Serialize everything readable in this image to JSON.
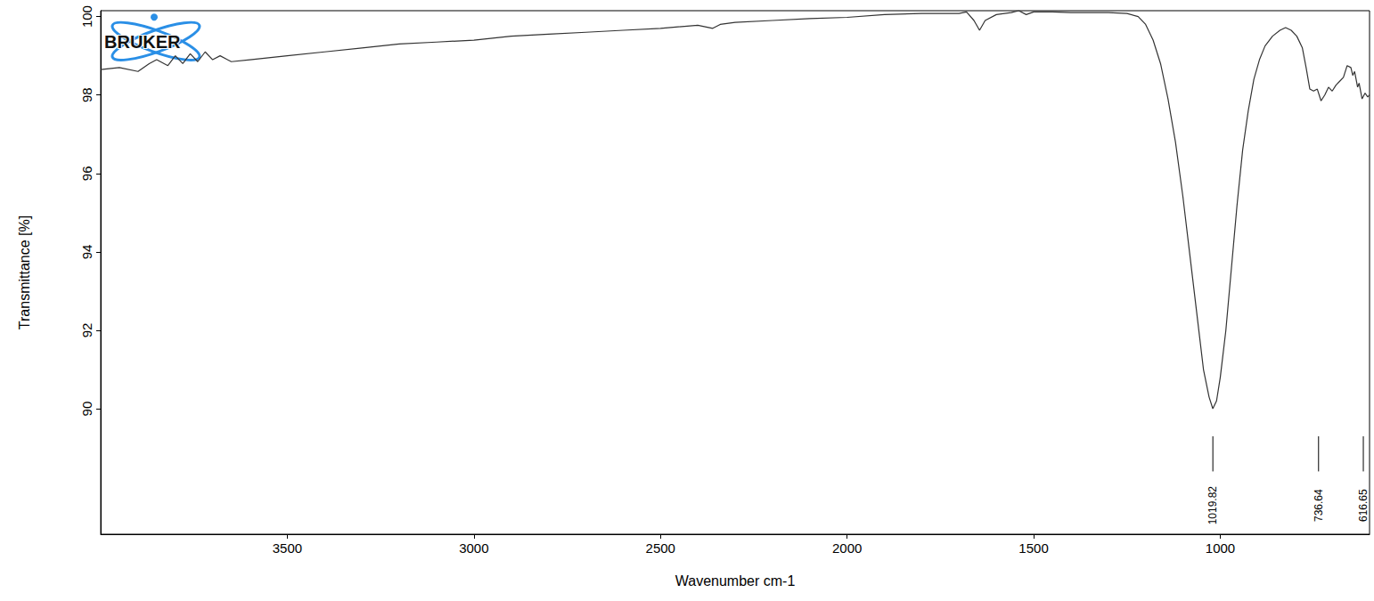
{
  "chart_data": {
    "type": "line",
    "logo": "BRUKER",
    "x_label": "Wavenumber cm-1",
    "y_label": "Transmittance [%]",
    "color": "#333333",
    "grid": false,
    "xlim": [
      4000,
      600
    ],
    "ylim": [
      86.8,
      100.15
    ],
    "xticks": [
      3500,
      3000,
      2500,
      2000,
      1500,
      1000
    ],
    "yticks": [
      90,
      92,
      94,
      96,
      98,
      100
    ],
    "peak_labels": [
      1019.82,
      736.64,
      616.65
    ],
    "x": [
      4000,
      3950,
      3900,
      3870,
      3850,
      3820,
      3800,
      3780,
      3760,
      3740,
      3720,
      3700,
      3680,
      3650,
      3600,
      3550,
      3500,
      3400,
      3300,
      3200,
      3100,
      3000,
      2900,
      2800,
      2700,
      2600,
      2500,
      2400,
      2360,
      2340,
      2300,
      2200,
      2100,
      2000,
      1900,
      1800,
      1700,
      1680,
      1660,
      1645,
      1630,
      1600,
      1560,
      1540,
      1520,
      1500,
      1450,
      1400,
      1300,
      1250,
      1220,
      1200,
      1180,
      1160,
      1140,
      1120,
      1100,
      1080,
      1060,
      1045,
      1030,
      1020,
      1010,
      1000,
      985,
      970,
      955,
      940,
      925,
      910,
      895,
      880,
      860,
      840,
      825,
      810,
      795,
      780,
      770,
      760,
      750,
      740,
      730,
      720,
      710,
      700,
      690,
      680,
      670,
      660,
      650,
      645,
      640,
      632,
      628,
      620,
      612,
      605,
      600
    ],
    "values": [
      98.65,
      98.7,
      98.6,
      98.8,
      98.9,
      98.75,
      99.0,
      98.8,
      99.05,
      98.85,
      99.1,
      98.9,
      99.0,
      98.85,
      98.9,
      98.95,
      99.0,
      99.1,
      99.2,
      99.3,
      99.35,
      99.4,
      99.5,
      99.55,
      99.6,
      99.65,
      99.7,
      99.78,
      99.7,
      99.8,
      99.85,
      99.9,
      99.95,
      99.98,
      100.05,
      100.08,
      100.08,
      100.12,
      99.9,
      99.65,
      99.9,
      100.05,
      100.1,
      100.15,
      100.05,
      100.12,
      100.12,
      100.1,
      100.1,
      100.08,
      100.0,
      99.8,
      99.4,
      98.8,
      97.9,
      96.8,
      95.4,
      93.8,
      92.2,
      91.0,
      90.3,
      90.0,
      90.2,
      90.8,
      92.0,
      93.6,
      95.2,
      96.6,
      97.6,
      98.4,
      98.9,
      99.25,
      99.5,
      99.65,
      99.72,
      99.65,
      99.5,
      99.2,
      98.7,
      98.15,
      98.1,
      98.15,
      97.85,
      98.0,
      98.2,
      98.1,
      98.25,
      98.35,
      98.45,
      98.75,
      98.7,
      98.5,
      98.6,
      98.2,
      98.3,
      97.9,
      98.05,
      97.95,
      98.0
    ]
  }
}
